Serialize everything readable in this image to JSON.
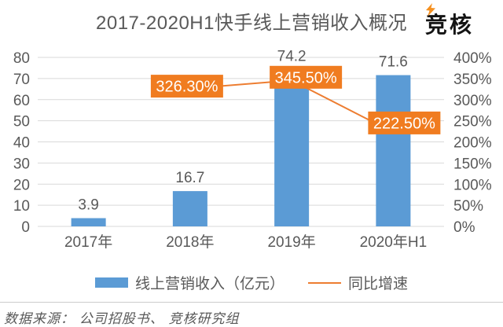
{
  "header": {
    "title": "2017-2020H1快手线上营销收入概况",
    "logo_text": "竞核"
  },
  "colors": {
    "bar": "#5B9BD5",
    "line": "#ED7D31",
    "label_box": "#F07C20",
    "label_text": "#FFFFFF",
    "grid": "#D9D9D9",
    "axis_text": "#595959",
    "title_text": "#595959",
    "logo_accent": "#F5901F",
    "logo_text_color": "#141414"
  },
  "chart_data": {
    "type": "bar",
    "title": "2017-2020H1快手线上营销收入概况",
    "categories": [
      "2017年",
      "2018年",
      "2019年",
      "2020年H1"
    ],
    "series": [
      {
        "name": "线上营销收入（亿元）",
        "type": "bar",
        "axis": "left",
        "color": "#5B9BD5",
        "values": [
          3.9,
          16.7,
          74.2,
          71.6
        ],
        "value_labels": [
          "3.9",
          "16.7",
          "74.2",
          "71.6"
        ]
      },
      {
        "name": "同比增速",
        "type": "line",
        "axis": "right",
        "color": "#ED7D31",
        "values": [
          null,
          326.3,
          345.5,
          222.5
        ],
        "point_labels": [
          null,
          "326.30%",
          "345.50%",
          "222.50%"
        ],
        "label_offsets": [
          null,
          [
            -4,
            -3
          ],
          [
            18,
            -4
          ],
          [
            14,
            -12
          ]
        ]
      }
    ],
    "left_axis": {
      "min": 0,
      "max": 80,
      "step": 10,
      "ticks": [
        "0",
        "10",
        "20",
        "30",
        "40",
        "50",
        "60",
        "70",
        "80"
      ]
    },
    "right_axis": {
      "min": 0,
      "max": 400,
      "step": 50,
      "ticks": [
        "0%",
        "50%",
        "100%",
        "150%",
        "200%",
        "250%",
        "300%",
        "350%",
        "400%"
      ]
    },
    "grid": true,
    "legend_position": "bottom"
  },
  "footer": {
    "source": "数据来源： 公司招股书、 竞核研究组"
  }
}
